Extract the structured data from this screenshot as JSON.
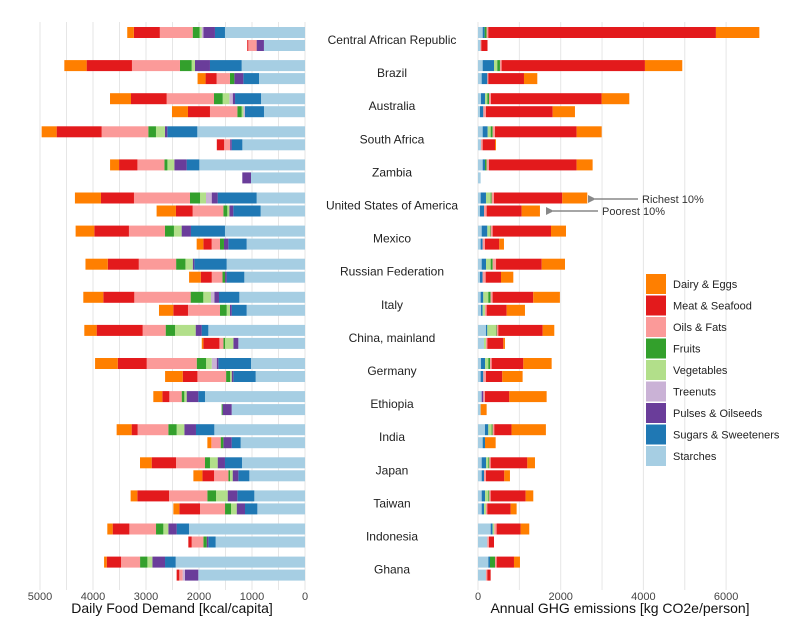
{
  "chart_data": [
    {
      "type": "bar",
      "orientation": "horizontal",
      "stacked": true,
      "xlabel": "Daily Food Demand [kcal/capita]",
      "xlim": [
        5000,
        0
      ],
      "x_reversed": true,
      "xticks": [
        5000,
        4000,
        3000,
        2000,
        1000,
        0
      ],
      "grid": true,
      "categories": [
        "Central African Republic",
        "Brazil",
        "Australia",
        "South Africa",
        "Zambia",
        "United States of America",
        "Mexico",
        "Russian Federation",
        "Italy",
        "China, mainland",
        "Germany",
        "Ethiopia",
        "India",
        "Japan",
        "Taiwan",
        "Indonesia",
        "Ghana"
      ],
      "stack_order": [
        "Starches",
        "Sugars & Sweeteners",
        "Pulses & Oilseeds",
        "Treenuts",
        "Vegetables",
        "Fruits",
        "Oils & Fats",
        "Meat & Seafood",
        "Dairy & Eggs"
      ],
      "richest_10pct": [
        [
          1510,
          189,
          220,
          30,
          40,
          130,
          620,
          490,
          125
        ],
        [
          1195,
          598,
          283,
          0,
          63,
          220,
          906,
          855,
          421
        ],
        [
          830,
          490,
          44,
          63,
          126,
          164,
          893,
          673,
          396
        ],
        [
          2032,
          566,
          44,
          0,
          170,
          145,
          880,
          849,
          283
        ],
        [
          1994,
          239,
          233,
          0,
          130,
          57,
          509,
          346,
          170
        ],
        [
          912,
          736,
          113,
          107,
          113,
          189,
          1057,
          623,
          491
        ],
        [
          1510,
          642,
          176,
          0,
          145,
          170,
          679,
          654,
          352
        ],
        [
          1478,
          610,
          30,
          0,
          138,
          176,
          704,
          585,
          421
        ],
        [
          1239,
          384,
          88,
          63,
          145,
          239,
          1063,
          585,
          377
        ],
        [
          1824,
          126,
          113,
          0,
          390,
          176,
          434,
          868,
          233
        ],
        [
          1019,
          616,
          31,
          94,
          107,
          176,
          943,
          547,
          428
        ],
        [
          1887,
          126,
          220,
          0,
          44,
          50,
          233,
          132,
          170
        ],
        [
          1711,
          346,
          220,
          0,
          145,
          157,
          579,
          113,
          283
        ],
        [
          1189,
          321,
          138,
          0,
          145,
          94,
          547,
          459,
          220
        ],
        [
          956,
          321,
          182,
          0,
          220,
          164,
          723,
          598,
          126
        ],
        [
          2189,
          233,
          157,
          0,
          94,
          138,
          503,
          315,
          101
        ],
        [
          2440,
          201,
          239,
          0,
          94,
          138,
          359,
          270,
          50
        ]
      ],
      "poorest_10pct": [
        [
          775,
          0,
          138,
          0,
          0,
          0,
          157,
          20,
          0
        ],
        [
          868,
          296,
          170,
          0,
          0,
          82,
          252,
          208,
          151
        ],
        [
          774,
          358,
          0,
          30,
          33,
          82,
          516,
          415,
          302
        ],
        [
          1182,
          201,
          30,
          0,
          0,
          0,
          113,
          138,
          0
        ],
        [
          1019,
          0,
          164,
          0,
          0,
          0,
          0,
          0,
          0
        ],
        [
          837,
          516,
          75,
          0,
          38,
          75,
          579,
          315,
          365
        ],
        [
          1101,
          346,
          82,
          0,
          0,
          75,
          157,
          157,
          126
        ],
        [
          1145,
          333,
          30,
          0,
          0,
          50,
          201,
          208,
          220
        ],
        [
          1101,
          283,
          31,
          0,
          63,
          126,
          604,
          277,
          270
        ],
        [
          1258,
          0,
          94,
          0,
          157,
          31,
          75,
          302,
          31
        ],
        [
          931,
          421,
          31,
          0,
          31,
          75,
          541,
          277,
          333
        ],
        [
          1384,
          0,
          170,
          0,
          0,
          19,
          0,
          0,
          0
        ],
        [
          1214,
          170,
          157,
          0,
          0,
          50,
          176,
          0,
          75
        ],
        [
          1050,
          208,
          107,
          0,
          50,
          31,
          270,
          220,
          170
        ],
        [
          899,
          233,
          157,
          0,
          107,
          113,
          472,
          390,
          113
        ],
        [
          1686,
          138,
          31,
          0,
          0,
          63,
          220,
          63,
          0
        ],
        [
          2013,
          0,
          252,
          44,
          0,
          0,
          63,
          50,
          0
        ]
      ]
    },
    {
      "type": "bar",
      "orientation": "horizontal",
      "stacked": true,
      "xlabel": "Annual GHG emissions [kg CO2e/person]",
      "xlim": [
        0,
        6800
      ],
      "xticks": [
        0,
        2000,
        4000,
        6000
      ],
      "grid": true,
      "categories": [
        "Central African Republic",
        "Brazil",
        "Australia",
        "South Africa",
        "Zambia",
        "United States of America",
        "Mexico",
        "Russian Federation",
        "Italy",
        "China, mainland",
        "Germany",
        "Ethiopia",
        "India",
        "Japan",
        "Taiwan",
        "Indonesia",
        "Ghana"
      ],
      "stack_order": [
        "Starches",
        "Sugars & Sweeteners",
        "Pulses & Oilseeds",
        "Treenuts",
        "Vegetables",
        "Fruits",
        "Oils & Fats",
        "Meat & Seafood",
        "Dairy & Eggs"
      ],
      "richest_10pct": [
        [
          113,
          48,
          0,
          0,
          0,
          48,
          40,
          5505,
          1050
        ],
        [
          113,
          274,
          0,
          0,
          80,
          64,
          40,
          3466,
          903
        ],
        [
          73,
          97,
          0,
          0,
          56,
          40,
          48,
          2676,
          669
        ],
        [
          113,
          121,
          0,
          0,
          73,
          48,
          56,
          1975,
          605
        ],
        [
          113,
          56,
          0,
          0,
          0,
          40,
          56,
          2120,
          387
        ],
        [
          64,
          129,
          0,
          0,
          113,
          24,
          56,
          1652,
          605
        ],
        [
          89,
          137,
          0,
          0,
          64,
          16,
          48,
          1411,
          363
        ],
        [
          89,
          105,
          0,
          0,
          113,
          48,
          81,
          1104,
          564
        ],
        [
          64,
          64,
          0,
          0,
          121,
          56,
          48,
          983,
          645
        ],
        [
          193,
          32,
          0,
          0,
          210,
          16,
          40,
          1072,
          282
        ],
        [
          73,
          97,
          0,
          0,
          80,
          40,
          40,
          766,
          685
        ],
        [
          89,
          0,
          40,
          0,
          0,
          0,
          40,
          588,
          903
        ],
        [
          169,
          80,
          0,
          0,
          80,
          24,
          40,
          419,
          830
        ],
        [
          89,
          105,
          0,
          0,
          56,
          24,
          32,
          887,
          185
        ],
        [
          89,
          81,
          0,
          0,
          80,
          24,
          32,
          846,
          185
        ],
        [
          306,
          48,
          0,
          0,
          40,
          0,
          56,
          580,
          210
        ],
        [
          250,
          40,
          0,
          0,
          0,
          121,
          40,
          419,
          145
        ]
      ],
      "poorest_10pct": [
        [
          60,
          0,
          0,
          0,
          0,
          0,
          20,
          150,
          0
        ],
        [
          89,
          137,
          0,
          0,
          0,
          0,
          24,
          862,
          322
        ],
        [
          48,
          81,
          0,
          0,
          0,
          0,
          64,
          1612,
          540
        ],
        [
          73,
          0,
          0,
          0,
          0,
          0,
          40,
          298,
          24
        ],
        [
          64,
          0,
          0,
          0,
          0,
          0,
          0,
          0,
          0
        ],
        [
          48,
          97,
          0,
          0,
          0,
          0,
          64,
          846,
          443
        ],
        [
          64,
          48,
          0,
          0,
          0,
          0,
          56,
          347,
          113
        ],
        [
          48,
          64,
          0,
          0,
          0,
          0,
          73,
          371,
          298
        ],
        [
          73,
          40,
          0,
          0,
          56,
          0,
          40,
          484,
          443
        ],
        [
          145,
          0,
          0,
          0,
          48,
          0,
          32,
          387,
          40
        ],
        [
          64,
          64,
          0,
          0,
          0,
          0,
          64,
          395,
          492
        ],
        [
          64,
          0,
          0,
          0,
          0,
          0,
          0,
          0,
          145
        ],
        [
          113,
          56,
          0,
          0,
          0,
          0,
          0,
          0,
          258
        ],
        [
          89,
          56,
          0,
          0,
          0,
          0,
          48,
          443,
          137
        ],
        [
          89,
          56,
          0,
          0,
          48,
          0,
          32,
          564,
          145
        ],
        [
          226,
          0,
          0,
          0,
          0,
          0,
          40,
          121,
          0
        ],
        [
          193,
          0,
          0,
          0,
          0,
          0,
          32,
          81,
          0
        ]
      ],
      "annotations": [
        "Richest 10%",
        "Poorest 10%"
      ]
    }
  ],
  "legend": {
    "placement": "right",
    "items": [
      {
        "label": "Dairy & Eggs",
        "color": "#ff7f00"
      },
      {
        "label": "Meat & Seafood",
        "color": "#e31a1c"
      },
      {
        "label": "Oils & Fats",
        "color": "#fb9a99"
      },
      {
        "label": "Fruits",
        "color": "#33a02c"
      },
      {
        "label": "Vegetables",
        "color": "#b2df8a"
      },
      {
        "label": "Treenuts",
        "color": "#cab2d6"
      },
      {
        "label": "Pulses & Oilseeds",
        "color": "#6a3d9a"
      },
      {
        "label": "Sugars & Sweeteners",
        "color": "#1f78b4"
      },
      {
        "label": "Starches",
        "color": "#a6cee3"
      }
    ]
  }
}
